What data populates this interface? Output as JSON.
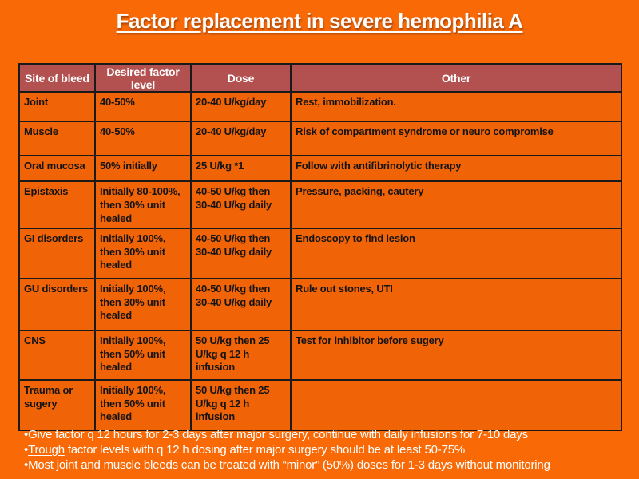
{
  "slide": {
    "title": "Factor replacement in severe hemophilia A",
    "colors": {
      "background": "#F96A07",
      "cell_bg": "#F16307",
      "header_bg": "#B25150",
      "header_text": "#FFFFFF",
      "cell_text": "#141414",
      "border": "#1A1A1A",
      "title_text": "#FFFFFF",
      "footer_text": "#FFFFFF"
    }
  },
  "table": {
    "headers": [
      "Site of bleed",
      "Desired factor level",
      "Dose",
      "Other"
    ],
    "rows": [
      [
        "Joint",
        "40-50%",
        "20-40 U/kg/day",
        "Rest, immobilization."
      ],
      [
        "Muscle",
        "40-50%",
        "20-40 U/kg/day",
        "Risk of compartment syndrome or neuro  compromise"
      ],
      [
        "Oral mucosa",
        "50% initially",
        "25 U/kg *1",
        "Follow with antifibrinolytic therapy"
      ],
      [
        "Epistaxis",
        "Initially 80-100%, then 30% unit healed",
        "40-50 U/kg then 30-40 U/kg daily",
        "Pressure, packing, cautery"
      ],
      [
        "GI disorders",
        "Initially 100%, then 30% unit healed",
        "40-50 U/kg then 30-40 U/kg daily",
        "Endoscopy to find lesion"
      ],
      [
        "GU disorders",
        "Initially 100%, then 30% unit healed",
        "40-50 U/kg then 30-40 U/kg daily",
        "Rule out stones, UTI"
      ],
      [
        "CNS",
        "Initially 100%, then 50% unit healed",
        "50 U/kg then 25 U/kg q 12 h infusion",
        "Test for inhibitor before sugery"
      ],
      [
        "Trauma or sugery",
        "Initially 100%, then 50% unit healed",
        "50 U/kg then 25 U/kg q 12 h infusion",
        ""
      ]
    ]
  },
  "footer": {
    "bullet_char": "•",
    "bullets": [
      {
        "underline": "",
        "text": "Give factor q 12 hours for 2-3 days after major surgery, continue with daily infusions for 7-10 days"
      },
      {
        "underline": "Trough",
        "text": " factor levels with q 12 h dosing after major surgery should be at least 50-75%"
      },
      {
        "underline": "",
        "text": "Most joint and muscle bleeds can be treated with “minor” (50%) doses for 1-3 days without monitoring"
      }
    ]
  }
}
